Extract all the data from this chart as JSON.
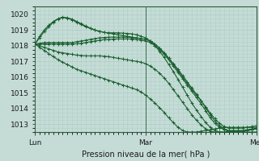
{
  "title": "Pression niveau de la mer( hPa )",
  "bg_color": "#c5dcd6",
  "grid_color": "#b0cec8",
  "line_color": "#1a6030",
  "xlabels": [
    "Lun",
    "Mar",
    "Mer"
  ],
  "ylim": [
    1012.5,
    1020.5
  ],
  "yticks": [
    1013,
    1014,
    1015,
    1016,
    1017,
    1018,
    1019,
    1020
  ],
  "xlim": [
    0,
    48
  ],
  "n_points": 49,
  "vline_positions": [
    0,
    24,
    48
  ],
  "series": [
    [
      1018.1,
      1018.5,
      1018.9,
      1019.2,
      1019.5,
      1019.7,
      1019.8,
      1019.75,
      1019.65,
      1019.5,
      1019.35,
      1019.2,
      1019.1,
      1019.0,
      1018.9,
      1018.85,
      1018.8,
      1018.75,
      1018.7,
      1018.65,
      1018.6,
      1018.55,
      1018.5,
      1018.45,
      1018.4,
      1018.3,
      1018.1,
      1017.85,
      1017.55,
      1017.2,
      1016.8,
      1016.4,
      1016.0,
      1015.6,
      1015.2,
      1014.85,
      1014.5,
      1014.1,
      1013.7,
      1013.35,
      1013.05,
      1012.85,
      1012.75,
      1012.75,
      1012.75,
      1012.75,
      1012.8,
      1012.85,
      1012.9
    ],
    [
      1018.1,
      1018.15,
      1018.2,
      1018.2,
      1018.2,
      1018.2,
      1018.2,
      1018.2,
      1018.2,
      1018.25,
      1018.3,
      1018.35,
      1018.4,
      1018.45,
      1018.5,
      1018.52,
      1018.54,
      1018.55,
      1018.55,
      1018.55,
      1018.55,
      1018.52,
      1018.5,
      1018.45,
      1018.4,
      1018.3,
      1018.1,
      1017.85,
      1017.55,
      1017.2,
      1016.85,
      1016.5,
      1016.1,
      1015.7,
      1015.3,
      1014.9,
      1014.5,
      1014.05,
      1013.6,
      1013.2,
      1012.9,
      1012.7,
      1012.6,
      1012.6,
      1012.6,
      1012.6,
      1012.65,
      1012.7,
      1012.75
    ],
    [
      1018.1,
      1018.1,
      1018.1,
      1018.1,
      1018.1,
      1018.1,
      1018.1,
      1018.1,
      1018.1,
      1018.12,
      1018.15,
      1018.2,
      1018.25,
      1018.3,
      1018.35,
      1018.38,
      1018.4,
      1018.42,
      1018.43,
      1018.43,
      1018.43,
      1018.42,
      1018.4,
      1018.35,
      1018.3,
      1018.2,
      1018.0,
      1017.75,
      1017.45,
      1017.1,
      1016.7,
      1016.3,
      1015.9,
      1015.5,
      1015.1,
      1014.7,
      1014.3,
      1013.85,
      1013.4,
      1013.05,
      1012.8,
      1012.65,
      1012.55,
      1012.55,
      1012.55,
      1012.55,
      1012.6,
      1012.65,
      1012.7
    ],
    [
      1018.1,
      1018.0,
      1017.9,
      1017.8,
      1017.7,
      1017.6,
      1017.55,
      1017.5,
      1017.45,
      1017.4,
      1017.38,
      1017.35,
      1017.35,
      1017.35,
      1017.35,
      1017.33,
      1017.3,
      1017.25,
      1017.2,
      1017.15,
      1017.1,
      1017.05,
      1017.0,
      1016.95,
      1016.85,
      1016.7,
      1016.5,
      1016.25,
      1015.95,
      1015.6,
      1015.2,
      1014.8,
      1014.4,
      1014.0,
      1013.6,
      1013.25,
      1012.95,
      1012.7,
      1012.55,
      1012.5,
      1012.5,
      1012.5,
      1012.55,
      1012.55,
      1012.55,
      1012.55,
      1012.6,
      1012.65,
      1012.7
    ],
    [
      1018.1,
      1017.9,
      1017.7,
      1017.5,
      1017.3,
      1017.1,
      1016.95,
      1016.8,
      1016.65,
      1016.5,
      1016.4,
      1016.3,
      1016.2,
      1016.1,
      1016.0,
      1015.9,
      1015.8,
      1015.7,
      1015.6,
      1015.5,
      1015.4,
      1015.3,
      1015.2,
      1015.05,
      1014.85,
      1014.6,
      1014.35,
      1014.05,
      1013.75,
      1013.4,
      1013.1,
      1012.8,
      1012.6,
      1012.5,
      1012.5,
      1012.5,
      1012.55,
      1012.6,
      1012.65,
      1012.7,
      1012.75,
      1012.8,
      1012.8,
      1012.8,
      1012.8,
      1012.8,
      1012.8,
      1012.8,
      1012.8
    ],
    [
      1018.1,
      1018.6,
      1019.0,
      1019.3,
      1019.55,
      1019.72,
      1019.82,
      1019.78,
      1019.7,
      1019.55,
      1019.4,
      1019.25,
      1019.12,
      1019.0,
      1018.92,
      1018.85,
      1018.82,
      1018.82,
      1018.82,
      1018.8,
      1018.78,
      1018.75,
      1018.7,
      1018.6,
      1018.5,
      1018.3,
      1018.0,
      1017.65,
      1017.25,
      1016.8,
      1016.35,
      1015.85,
      1015.35,
      1014.85,
      1014.35,
      1013.9,
      1013.5,
      1013.1,
      1012.8,
      1012.6,
      1012.5,
      1012.5,
      1012.5,
      1012.5,
      1012.5,
      1012.5,
      1012.5,
      1012.5,
      1012.5
    ]
  ]
}
